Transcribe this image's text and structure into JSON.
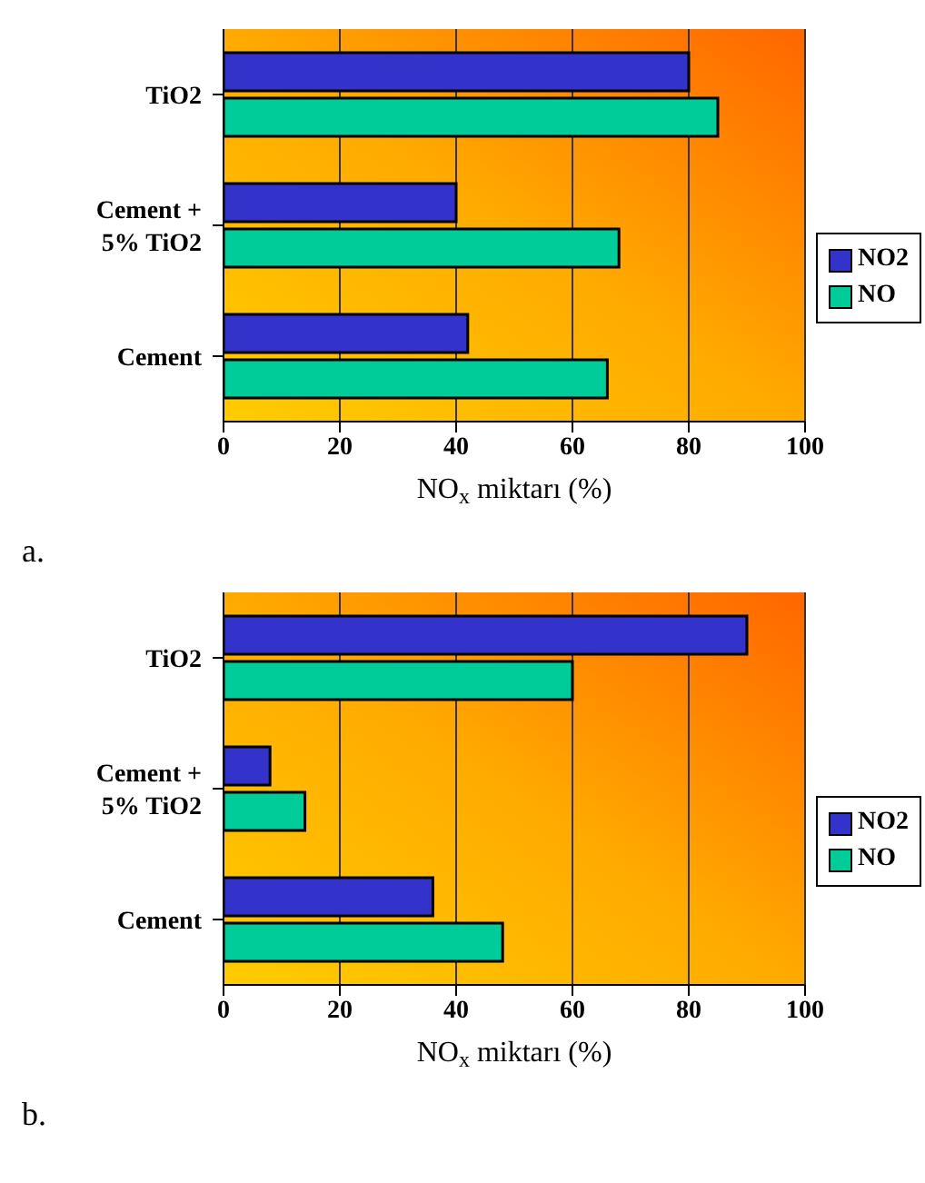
{
  "chart_data": [
    {
      "type": "bar",
      "orientation": "horizontal",
      "categories": [
        "TiO2",
        "Cement + 5% TiO2",
        "Cement"
      ],
      "series": [
        {
          "name": "NO2",
          "color": "#3333cc",
          "values": [
            80,
            40,
            42
          ]
        },
        {
          "name": "NO",
          "color": "#00cc99",
          "values": [
            85,
            68,
            66
          ]
        }
      ],
      "xlim": [
        0,
        100
      ],
      "xticks": [
        0,
        20,
        40,
        60,
        80,
        100
      ],
      "xlabel": "NO$_{x}$ miktarı (%)",
      "grid": "x",
      "legend": "right",
      "annotations": [
        "a."
      ]
    },
    {
      "type": "bar",
      "orientation": "horizontal",
      "categories": [
        "TiO2",
        "Cement + 5% TiO2",
        "Cement"
      ],
      "series": [
        {
          "name": "NO2",
          "color": "#3333cc",
          "values": [
            90,
            8,
            36
          ]
        },
        {
          "name": "NO",
          "color": "#00cc99",
          "values": [
            60,
            14,
            48
          ]
        }
      ],
      "xlim": [
        0,
        100
      ],
      "xticks": [
        0,
        20,
        40,
        60,
        80,
        100
      ],
      "xlabel": "NO$_{x}$ miktarı (%)",
      "grid": "x",
      "legend": "right",
      "annotations": [
        "b."
      ]
    }
  ]
}
